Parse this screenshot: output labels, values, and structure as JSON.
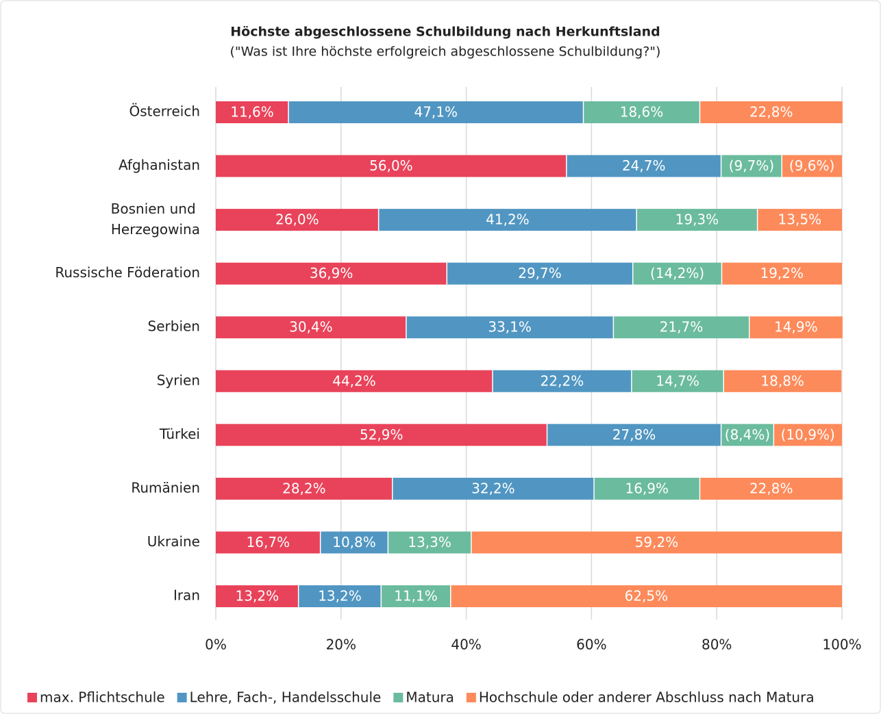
{
  "chart_data": {
    "type": "stacked_bar_horizontal",
    "title": "Höchste abgeschlossene Schulbildung nach Herkunftsland",
    "subtitle": "(\"Was ist Ihre höchste erfolgreich abgeschlossene Schulbildung?\")",
    "categories": [
      "Österreich",
      "Afghanistan",
      "Bosnien und Herzegowina",
      "Russische Föderation",
      "Serbien",
      "Syrien",
      "Türkei",
      "Rumänien",
      "Ukraine",
      "Iran"
    ],
    "series": [
      {
        "name": "max. Pflichtschule",
        "color": "#e8435a",
        "values": [
          11.6,
          56.0,
          26.0,
          36.9,
          30.4,
          44.2,
          52.9,
          28.2,
          16.7,
          13.2
        ],
        "value_labels": [
          "11,6%",
          "56,0%",
          "26,0%",
          "36,9%",
          "30,4%",
          "44,2%",
          "52,9%",
          "28,2%",
          "16,7%",
          "13,2%"
        ]
      },
      {
        "name": "Lehre, Fach-, Handelsschule",
        "color": "#5196c2",
        "values": [
          47.1,
          24.7,
          41.2,
          29.7,
          33.1,
          22.2,
          27.8,
          32.2,
          10.8,
          13.2
        ],
        "value_labels": [
          "47,1%",
          "24,7%",
          "41,2%",
          "29,7%",
          "33,1%",
          "22,2%",
          "27,8%",
          "32,2%",
          "10,8%",
          "13,2%"
        ]
      },
      {
        "name": "Matura",
        "color": "#6bbb9e",
        "values": [
          18.6,
          9.7,
          19.3,
          14.2,
          21.7,
          14.7,
          8.4,
          16.9,
          13.3,
          11.1
        ],
        "value_labels": [
          "18,6%",
          "(9,7%)",
          "19,3%",
          "(14,2%)",
          "21,7%",
          "14,7%",
          "(8,4%)",
          "16,9%",
          "13,3%",
          "11,1%"
        ]
      },
      {
        "name": "Hochschule oder anderer Abschluss nach Matura",
        "color": "#fd8a5a",
        "values": [
          22.8,
          9.6,
          13.5,
          19.2,
          14.9,
          18.8,
          10.9,
          22.8,
          59.2,
          62.5
        ],
        "value_labels": [
          "22,8%",
          "(9,6%)",
          "13,5%",
          "19,2%",
          "14,9%",
          "18,8%",
          "(10,9%)",
          "22,8%",
          "59,2%",
          "62,5%"
        ]
      }
    ],
    "xlim": [
      0,
      100
    ],
    "xticks": [
      {
        "value": 0,
        "label": "0%"
      },
      {
        "value": 20,
        "label": "20%"
      },
      {
        "value": 40,
        "label": "40%"
      },
      {
        "value": 60,
        "label": "60%"
      },
      {
        "value": 80,
        "label": "80%"
      },
      {
        "value": 100,
        "label": "100%"
      }
    ],
    "grid": true,
    "legend": "bottom"
  }
}
